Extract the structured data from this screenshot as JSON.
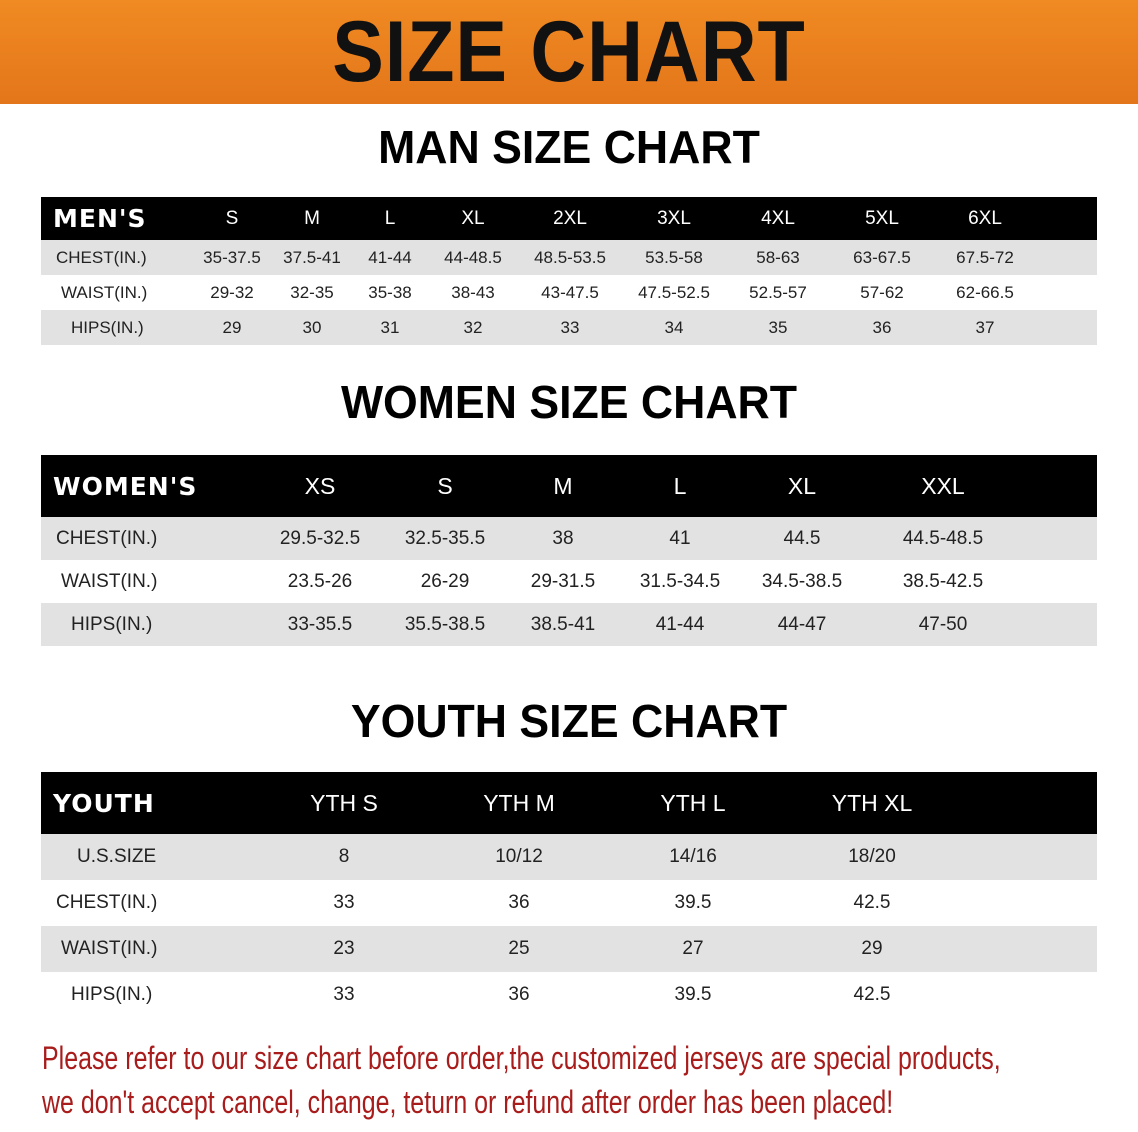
{
  "banner_title": "SIZE CHART",
  "men": {
    "title": "MAN SIZE CHART",
    "header": [
      "MEN'S",
      "S",
      "M",
      "L",
      "XL",
      "2XL",
      "3XL",
      "4XL",
      "5XL",
      "6XL"
    ],
    "rows": [
      [
        "CHEST(IN.)",
        "35-37.5",
        "37.5-41",
        "41-44",
        "44-48.5",
        "48.5-53.5",
        "53.5-58",
        "58-63",
        "63-67.5",
        "67.5-72"
      ],
      [
        "WAIST(IN.)",
        "29-32",
        "32-35",
        "35-38",
        "38-43",
        "43-47.5",
        "47.5-52.5",
        "52.5-57",
        "57-62",
        "62-66.5"
      ],
      [
        "HIPS(IN.)",
        "29",
        "30",
        "31",
        "32",
        "33",
        "34",
        "35",
        "36",
        "37"
      ]
    ]
  },
  "women": {
    "title": "WOMEN SIZE CHART",
    "header": [
      "WOMEN'S",
      "XS",
      "S",
      "M",
      "L",
      "XL",
      "XXL"
    ],
    "rows": [
      [
        "CHEST(IN.)",
        "29.5-32.5",
        "32.5-35.5",
        "38",
        "41",
        "44.5",
        "44.5-48.5"
      ],
      [
        "WAIST(IN.)",
        "23.5-26",
        "26-29",
        "29-31.5",
        "31.5-34.5",
        "34.5-38.5",
        "38.5-42.5"
      ],
      [
        "HIPS(IN.)",
        "33-35.5",
        "35.5-38.5",
        "38.5-41",
        "41-44",
        "44-47",
        "47-50"
      ]
    ]
  },
  "youth": {
    "title": "YOUTH SIZE CHART",
    "header": [
      "YOUTH",
      "YTH S",
      "YTH M",
      "YTH L",
      "YTH XL"
    ],
    "rows": [
      [
        "U.S.SIZE",
        "8",
        "10/12",
        "14/16",
        "18/20"
      ],
      [
        "CHEST(IN.)",
        "33",
        "36",
        "39.5",
        "42.5"
      ],
      [
        "WAIST(IN.)",
        "23",
        "25",
        "27",
        "29"
      ],
      [
        "HIPS(IN.)",
        "33",
        "36",
        "39.5",
        "42.5"
      ]
    ]
  },
  "footer": {
    "line1": "Please refer to our size chart before order,the customized jerseys are special products,",
    "line2": "we don't accept cancel, change, teturn or refund after order has been placed!"
  },
  "colors": {
    "banner": "#e8801a",
    "header_row": "#000000",
    "stripe": "#e2e2e2",
    "notice": "#a81c1c"
  }
}
